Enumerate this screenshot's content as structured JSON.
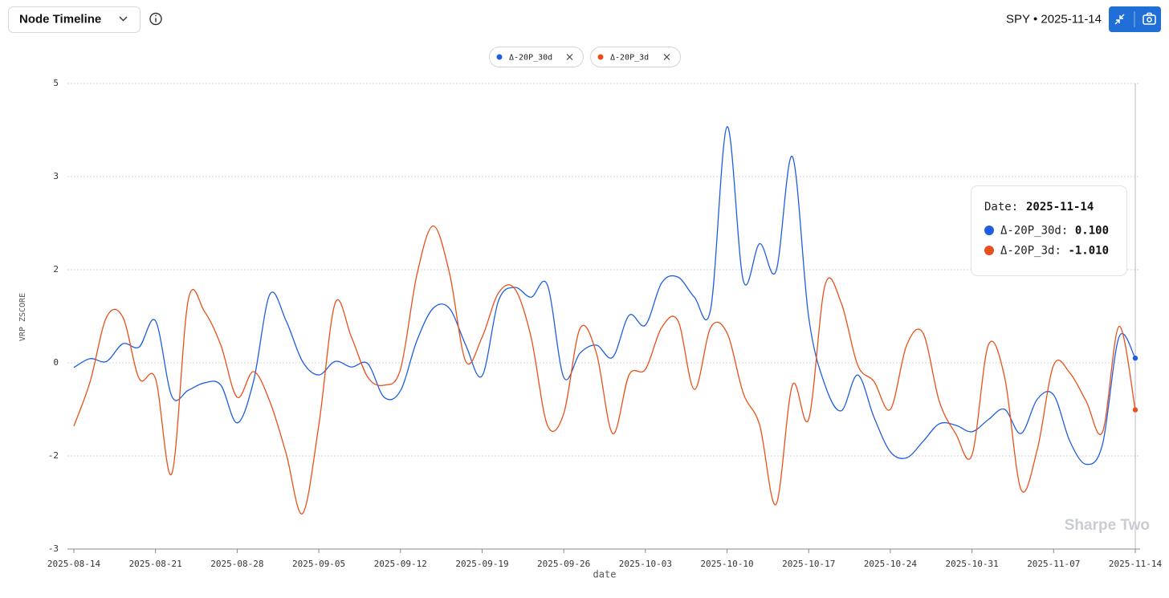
{
  "header": {
    "title": "Node Timeline",
    "ticker": "SPY • 2025-11-14"
  },
  "watermark": "Sharpe Two",
  "tooltip": {
    "label": "Date:",
    "date": "2025-11-14",
    "value_labels": [
      "0.100",
      "-1.010"
    ]
  },
  "chart_data": {
    "type": "line",
    "y_label": "VRP ZSCORE",
    "x_label": "date",
    "categories": [
      "2025-08-14",
      null,
      null,
      null,
      null,
      "2025-08-21",
      null,
      null,
      null,
      null,
      "2025-08-28",
      null,
      null,
      null,
      null,
      "2025-09-05",
      null,
      null,
      null,
      null,
      "2025-09-12",
      null,
      null,
      null,
      null,
      "2025-09-19",
      null,
      null,
      null,
      null,
      "2025-09-26",
      null,
      null,
      null,
      null,
      "2025-10-03",
      null,
      null,
      null,
      null,
      "2025-10-10",
      null,
      null,
      null,
      null,
      "2025-10-17",
      null,
      null,
      null,
      null,
      "2025-10-24",
      null,
      null,
      null,
      null,
      "2025-10-31",
      null,
      null,
      null,
      null,
      "2025-11-07",
      null,
      null,
      null,
      null,
      "2025-11-14"
    ],
    "series": [
      {
        "name": "Δ-20P_30d",
        "color": "#1f5ee0",
        "values": [
          -0.1,
          0.09,
          0.03,
          0.41,
          0.34,
          0.9,
          -0.72,
          -0.59,
          -0.43,
          -0.48,
          -1.29,
          -0.4,
          1.47,
          0.9,
          0.03,
          -0.26,
          0.03,
          -0.09,
          -0.02,
          -0.74,
          -0.6,
          0.47,
          1.17,
          1.17,
          0.38,
          -0.28,
          1.33,
          1.62,
          1.41,
          1.67,
          -0.31,
          0.21,
          0.38,
          0.12,
          1.02,
          0.81,
          1.72,
          1.84,
          1.41,
          1.16,
          4.07,
          1.76,
          2.28,
          1.97,
          3.43,
          0.98,
          -0.48,
          -1.03,
          -0.26,
          -1.17,
          -1.91,
          -2.02,
          -1.69,
          -1.31,
          -1.34,
          -1.48,
          -1.22,
          -1.0,
          -1.52,
          -0.78,
          -0.69,
          -1.69,
          -2.09,
          -1.74,
          0.55,
          0.1
        ]
      },
      {
        "name": "Δ-20P_3d",
        "color": "#e8501a",
        "values": [
          -1.36,
          -0.4,
          0.98,
          0.98,
          -0.34,
          -0.34,
          -2.19,
          1.34,
          1.1,
          0.38,
          -0.74,
          -0.19,
          -0.83,
          -1.95,
          -2.62,
          -1.34,
          1.28,
          0.55,
          -0.31,
          -0.48,
          -0.14,
          1.88,
          2.47,
          1.93,
          0.03,
          0.55,
          1.5,
          1.59,
          0.55,
          -1.34,
          -1.09,
          0.74,
          0.21,
          -1.52,
          -0.26,
          -0.14,
          0.76,
          0.9,
          -0.57,
          0.76,
          0.64,
          -0.66,
          -1.34,
          -2.52,
          -0.48,
          -1.21,
          1.67,
          1.28,
          -0.05,
          -0.4,
          -1.0,
          0.38,
          0.64,
          -0.83,
          -1.52,
          -1.98,
          0.38,
          -0.31,
          -2.36,
          -1.86,
          -0.05,
          -0.22,
          -0.83,
          -1.48,
          0.78,
          -1.01
        ]
      }
    ],
    "ylim": [
      -3,
      5
    ],
    "yticks": [
      -3,
      -2,
      0,
      2,
      3,
      5
    ],
    "y_scale": "tick-spaced",
    "grid": true
  }
}
